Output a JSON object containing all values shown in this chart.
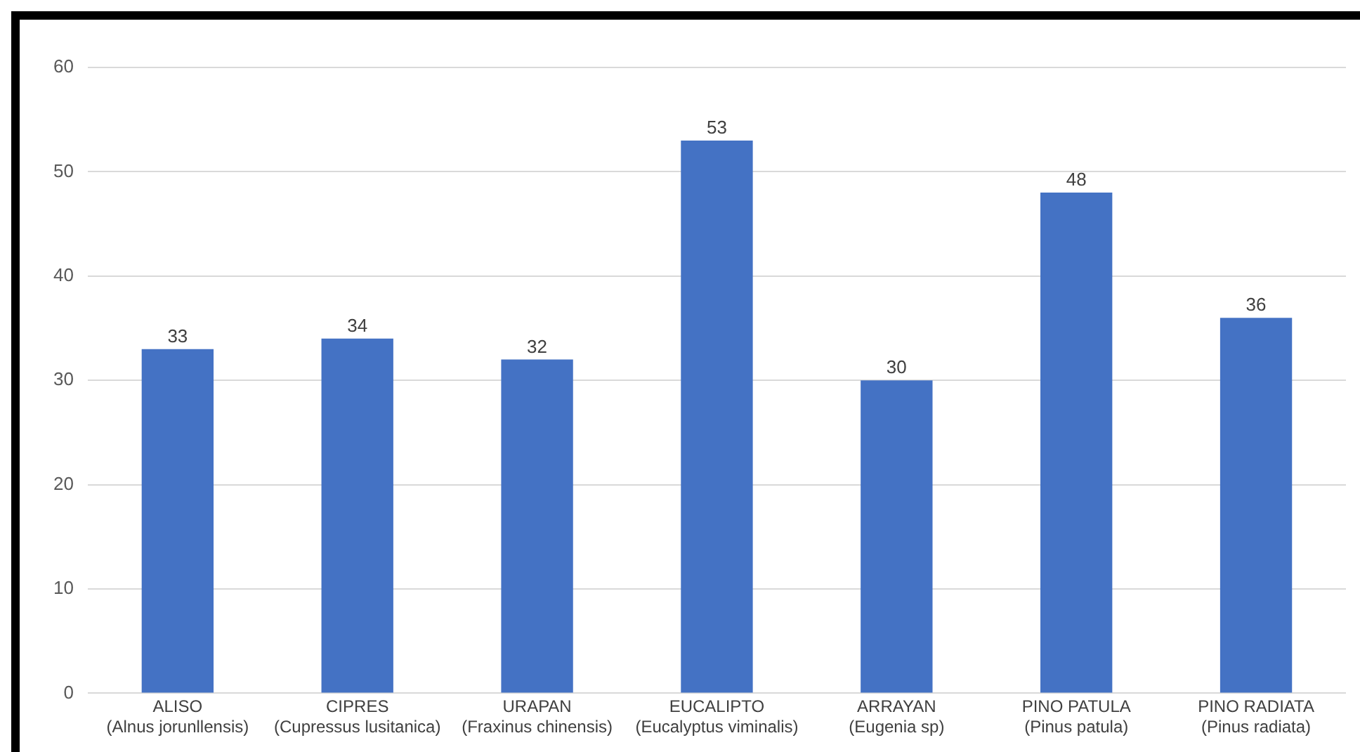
{
  "chart_data": {
    "type": "bar",
    "categories": [
      "ALISO (Alnus jorunllensis)",
      "CIPRES (Cupressus lusitanica)",
      "URAPAN (Fraxinus chinensis)",
      "EUCALIPTO (Eucalyptus viminalis)",
      "ARRAYAN (Eugenia sp)",
      "PINO PATULA (Pinus patula)",
      "PINO RADIATA (Pinus radiata)"
    ],
    "values": [
      33,
      34,
      32,
      53,
      30,
      48,
      36
    ],
    "color": "#4472c4",
    "ylim": [
      0,
      60
    ],
    "yticks": [
      0,
      10,
      20,
      30,
      40,
      50,
      60
    ],
    "grid": "y",
    "legend": false,
    "data_labels": true
  }
}
